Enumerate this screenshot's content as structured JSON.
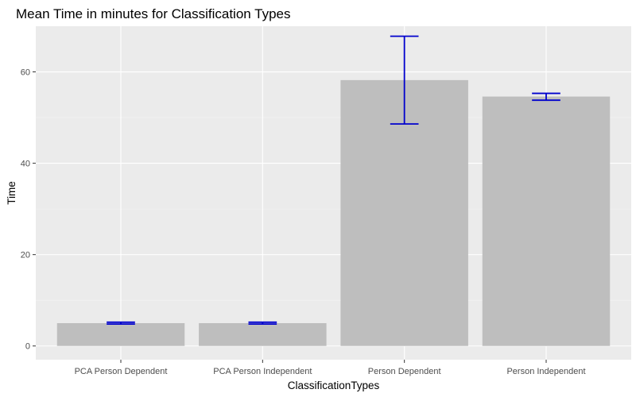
{
  "chart_data": {
    "type": "bar",
    "title": "Mean Time in minutes for Classification Types",
    "xlabel": "ClassificationTypes",
    "ylabel": "Time",
    "categories": [
      "PCA Person Dependent",
      "PCA Person Independent",
      "Person Dependent",
      "Person Independent"
    ],
    "values": [
      5.0,
      5.0,
      58.2,
      54.6
    ],
    "error_bars": [
      {
        "low": 4.8,
        "high": 5.2
      },
      {
        "low": 4.8,
        "high": 5.2
      },
      {
        "low": 48.6,
        "high": 67.8
      },
      {
        "low": 53.8,
        "high": 55.3
      }
    ],
    "yticks": [
      0,
      20,
      40,
      60
    ],
    "ylim": [
      -3,
      70
    ],
    "grid": true,
    "colors": {
      "bar": "#bebebe",
      "error_bar": "#0000cd",
      "panel_background": "#ebebeb",
      "grid_major": "#ffffff",
      "grid_minor": "#f5f5f5",
      "tick": "#333333"
    }
  }
}
